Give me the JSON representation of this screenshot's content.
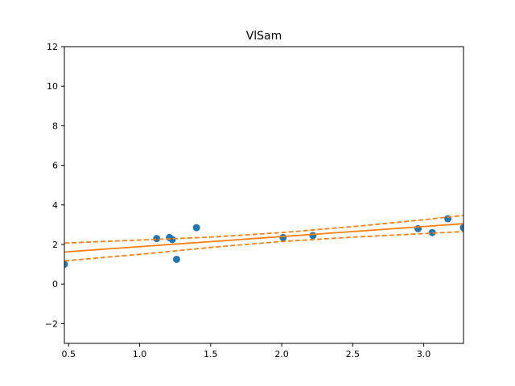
{
  "chart_data": {
    "type": "scatter",
    "title": "VlSam",
    "xlabel": "",
    "ylabel": "",
    "xlim": [
      0.47,
      3.28
    ],
    "ylim": [
      -3,
      12
    ],
    "x_ticks": [
      0.5,
      1.0,
      1.5,
      2.0,
      2.5,
      3.0
    ],
    "x_tick_labels": [
      "0.5",
      "1.0",
      "1.5",
      "2.0",
      "2.5",
      "3.0"
    ],
    "y_ticks": [
      -2,
      0,
      2,
      4,
      6,
      8,
      10,
      12
    ],
    "y_tick_labels": [
      "−2",
      "0",
      "2",
      "4",
      "6",
      "8",
      "10",
      "12"
    ],
    "grid": false,
    "colors": {
      "points": "#1f77b4",
      "fit": "#ff7f0e"
    },
    "points": [
      {
        "x": 0.47,
        "y": 1.0
      },
      {
        "x": 1.12,
        "y": 2.3
      },
      {
        "x": 1.21,
        "y": 2.35
      },
      {
        "x": 1.23,
        "y": 2.25
      },
      {
        "x": 1.26,
        "y": 1.25
      },
      {
        "x": 1.4,
        "y": 2.85
      },
      {
        "x": 2.01,
        "y": 2.35
      },
      {
        "x": 2.22,
        "y": 2.45
      },
      {
        "x": 2.96,
        "y": 2.8
      },
      {
        "x": 3.06,
        "y": 2.6
      },
      {
        "x": 3.17,
        "y": 3.3
      },
      {
        "x": 3.28,
        "y": 2.85
      }
    ],
    "fit_line": [
      {
        "x": 0.47,
        "y": 1.62
      },
      {
        "x": 3.28,
        "y": 3.05
      }
    ],
    "upper_band": [
      {
        "x": 0.47,
        "y": 2.07
      },
      {
        "x": 1.5,
        "y": 2.37
      },
      {
        "x": 2.0,
        "y": 2.6
      },
      {
        "x": 2.5,
        "y": 2.9
      },
      {
        "x": 3.0,
        "y": 3.25
      },
      {
        "x": 3.28,
        "y": 3.47
      }
    ],
    "lower_band": [
      {
        "x": 0.47,
        "y": 1.17
      },
      {
        "x": 1.0,
        "y": 1.5
      },
      {
        "x": 1.5,
        "y": 1.85
      },
      {
        "x": 2.0,
        "y": 2.15
      },
      {
        "x": 2.5,
        "y": 2.37
      },
      {
        "x": 3.0,
        "y": 2.55
      },
      {
        "x": 3.28,
        "y": 2.65
      }
    ]
  }
}
